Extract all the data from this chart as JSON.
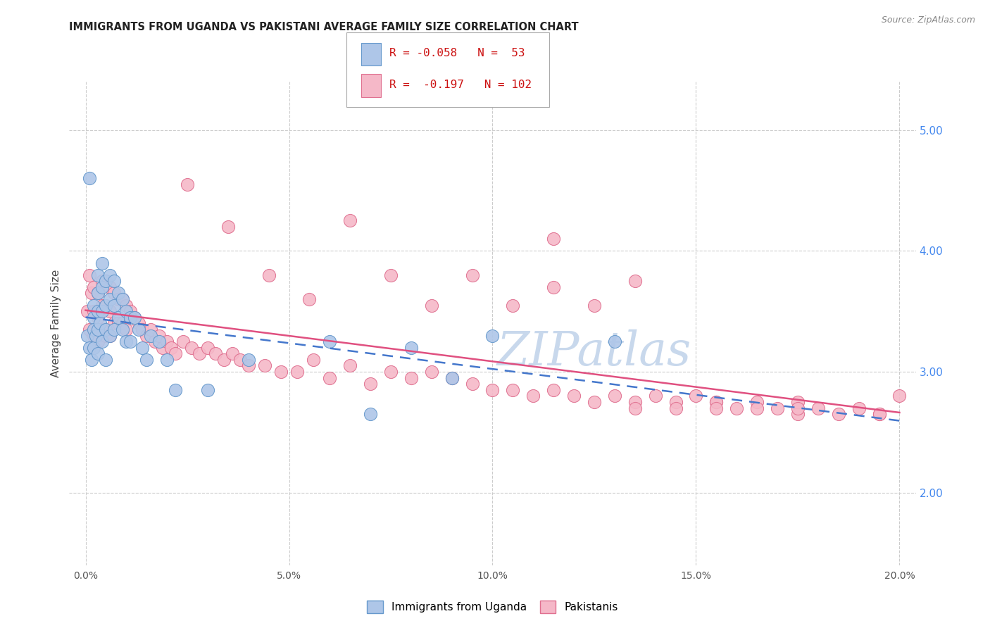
{
  "title": "IMMIGRANTS FROM UGANDA VS PAKISTANI AVERAGE FAMILY SIZE CORRELATION CHART",
  "source": "Source: ZipAtlas.com",
  "ylabel": "Average Family Size",
  "xlabel_ticks": [
    "0.0%",
    "5.0%",
    "10.0%",
    "15.0%",
    "20.0%"
  ],
  "xlabel_vals": [
    0.0,
    0.05,
    0.1,
    0.15,
    0.2
  ],
  "ylim": [
    1.4,
    5.4
  ],
  "xlim": [
    -0.004,
    0.204
  ],
  "right_yticks": [
    2.0,
    3.0,
    4.0,
    5.0
  ],
  "grid_color": "#cccccc",
  "watermark": "ZIPatlas",
  "watermark_color": "#c8d8ec",
  "legend_R1": "-0.058",
  "legend_N1": "53",
  "legend_R2": "-0.197",
  "legend_N2": "102",
  "label1": "Immigrants from Uganda",
  "label2": "Pakistanis",
  "dot_color1": "#aec6e8",
  "dot_color2": "#f5b8c8",
  "dot_edge1": "#6699cc",
  "dot_edge2": "#e07090",
  "trend_color1": "#4477cc",
  "trend_color2": "#e05080",
  "title_fontsize": 11,
  "source_fontsize": 9,
  "uganda_x": [
    0.0005,
    0.001,
    0.001,
    0.0015,
    0.002,
    0.002,
    0.002,
    0.002,
    0.0025,
    0.003,
    0.003,
    0.003,
    0.003,
    0.003,
    0.0035,
    0.004,
    0.004,
    0.004,
    0.004,
    0.005,
    0.005,
    0.005,
    0.005,
    0.006,
    0.006,
    0.006,
    0.007,
    0.007,
    0.007,
    0.008,
    0.008,
    0.009,
    0.009,
    0.01,
    0.01,
    0.011,
    0.011,
    0.012,
    0.013,
    0.014,
    0.015,
    0.016,
    0.018,
    0.02,
    0.022,
    0.03,
    0.04,
    0.06,
    0.07,
    0.08,
    0.09,
    0.1,
    0.13
  ],
  "uganda_y": [
    3.3,
    4.6,
    3.2,
    3.1,
    3.55,
    3.45,
    3.35,
    3.2,
    3.3,
    3.8,
    3.65,
    3.5,
    3.35,
    3.15,
    3.4,
    3.9,
    3.7,
    3.5,
    3.25,
    3.75,
    3.55,
    3.35,
    3.1,
    3.8,
    3.6,
    3.3,
    3.75,
    3.55,
    3.35,
    3.65,
    3.45,
    3.6,
    3.35,
    3.5,
    3.25,
    3.45,
    3.25,
    3.45,
    3.35,
    3.2,
    3.1,
    3.3,
    3.25,
    3.1,
    2.85,
    2.85,
    3.1,
    3.25,
    2.65,
    3.2,
    2.95,
    3.3,
    3.25
  ],
  "pakistan_x": [
    0.0005,
    0.001,
    0.001,
    0.0015,
    0.002,
    0.002,
    0.002,
    0.003,
    0.003,
    0.003,
    0.004,
    0.004,
    0.004,
    0.005,
    0.005,
    0.005,
    0.006,
    0.006,
    0.006,
    0.007,
    0.007,
    0.008,
    0.008,
    0.009,
    0.009,
    0.01,
    0.01,
    0.011,
    0.012,
    0.013,
    0.014,
    0.015,
    0.016,
    0.017,
    0.018,
    0.019,
    0.02,
    0.021,
    0.022,
    0.024,
    0.026,
    0.028,
    0.03,
    0.032,
    0.034,
    0.036,
    0.038,
    0.04,
    0.044,
    0.048,
    0.052,
    0.056,
    0.06,
    0.065,
    0.07,
    0.075,
    0.08,
    0.085,
    0.09,
    0.095,
    0.1,
    0.105,
    0.11,
    0.115,
    0.12,
    0.125,
    0.13,
    0.135,
    0.14,
    0.145,
    0.15,
    0.155,
    0.16,
    0.165,
    0.17,
    0.175,
    0.18,
    0.185,
    0.19,
    0.195,
    0.2,
    0.025,
    0.035,
    0.045,
    0.055,
    0.065,
    0.075,
    0.085,
    0.095,
    0.105,
    0.115,
    0.125,
    0.135,
    0.145,
    0.155,
    0.165,
    0.175,
    0.115,
    0.135,
    0.155,
    0.175,
    0.195
  ],
  "pakistan_y": [
    3.5,
    3.8,
    3.35,
    3.65,
    3.7,
    3.5,
    3.3,
    3.65,
    3.45,
    3.25,
    3.75,
    3.55,
    3.35,
    3.75,
    3.55,
    3.3,
    3.7,
    3.5,
    3.3,
    3.65,
    3.4,
    3.6,
    3.4,
    3.6,
    3.4,
    3.55,
    3.35,
    3.5,
    3.45,
    3.4,
    3.35,
    3.3,
    3.35,
    3.25,
    3.3,
    3.2,
    3.25,
    3.2,
    3.15,
    3.25,
    3.2,
    3.15,
    3.2,
    3.15,
    3.1,
    3.15,
    3.1,
    3.05,
    3.05,
    3.0,
    3.0,
    3.1,
    2.95,
    3.05,
    2.9,
    3.0,
    2.95,
    3.0,
    2.95,
    2.9,
    2.85,
    2.85,
    2.8,
    2.85,
    2.8,
    2.75,
    2.8,
    2.75,
    2.8,
    2.75,
    2.8,
    2.75,
    2.7,
    2.75,
    2.7,
    2.65,
    2.7,
    2.65,
    2.7,
    2.65,
    2.8,
    4.55,
    4.2,
    3.8,
    3.6,
    4.25,
    3.8,
    3.55,
    3.8,
    3.55,
    3.7,
    3.55,
    2.7,
    2.7,
    2.75,
    2.7,
    2.75,
    4.1,
    3.75,
    2.7,
    2.7,
    2.65
  ]
}
